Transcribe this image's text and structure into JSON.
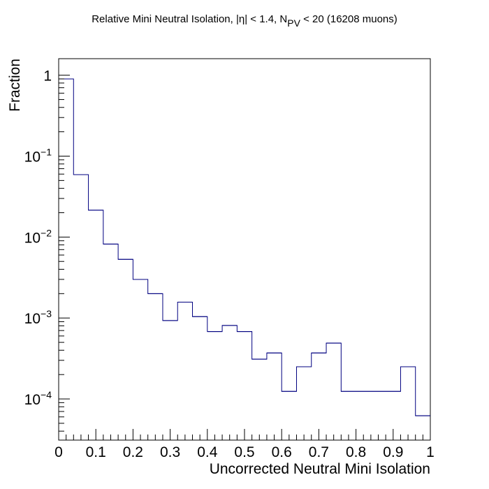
{
  "chart_data": {
    "type": "histogram",
    "title": {
      "prefix": "Relative Mini Neutral Isolation, |",
      "eta": "η",
      "middle": "| < 1.4, N",
      "subscript": "PV",
      "suffix": " < 20 (16208 muons)"
    },
    "xlabel": "Uncorrected Neutral Mini Isolation",
    "ylabel": "Fraction",
    "xlim": [
      0,
      1
    ],
    "ylim": [
      3.1e-05,
      1.6
    ],
    "yscale": "log",
    "line_color": "#000080",
    "bin_edges": [
      0,
      0.04,
      0.08,
      0.12,
      0.16,
      0.2,
      0.24,
      0.28,
      0.32,
      0.36,
      0.4,
      0.44,
      0.48,
      0.52,
      0.56,
      0.6,
      0.64,
      0.68,
      0.72,
      0.76,
      0.8,
      0.84,
      0.88,
      0.92,
      0.96,
      1.0
    ],
    "values": [
      0.9,
      0.059,
      0.0215,
      0.0082,
      0.0053,
      0.003,
      0.002,
      0.00093,
      0.00157,
      0.00104,
      0.00068,
      0.00081,
      0.00068,
      0.00031,
      0.00037,
      0.000124,
      0.00025,
      0.00037,
      0.00049,
      0.000124,
      0.000124,
      0.000124,
      0.000124,
      0.00025,
      6.2e-05
    ],
    "x_ticks": [
      "0",
      "0.1",
      "0.2",
      "0.3",
      "0.4",
      "0.5",
      "0.6",
      "0.7",
      "0.8",
      "0.9",
      "1"
    ],
    "y_ticks": [
      {
        "value": 1,
        "base": "1",
        "exp": ""
      },
      {
        "value": 0.1,
        "base": "10",
        "exp": "−1"
      },
      {
        "value": 0.01,
        "base": "10",
        "exp": "−2"
      },
      {
        "value": 0.001,
        "base": "10",
        "exp": "−3"
      },
      {
        "value": 0.0001,
        "base": "10",
        "exp": "−4"
      }
    ]
  }
}
